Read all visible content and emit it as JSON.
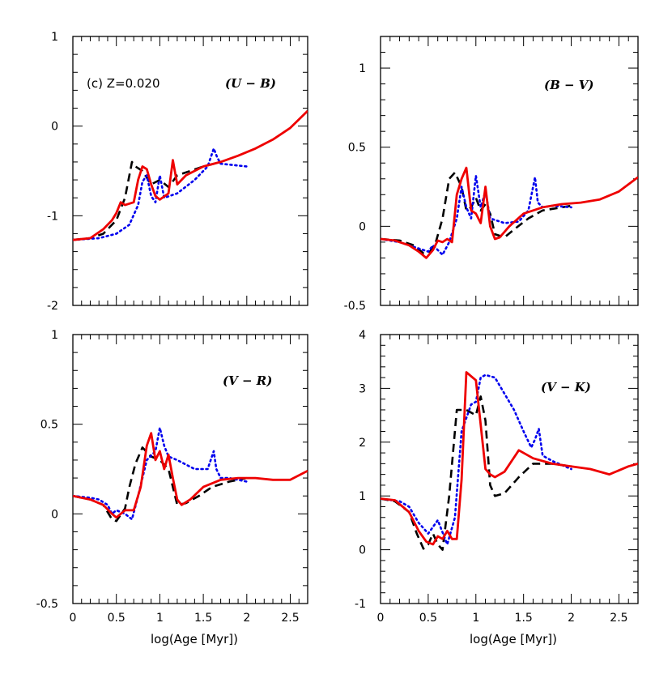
{
  "chart_data": [
    {
      "type": "line",
      "id": "ub",
      "title": "(U − B)",
      "annotation": "(c) Z=0.020",
      "xlabel": "",
      "ylabel": "",
      "xlim": [
        0,
        2.7
      ],
      "ylim": [
        -2,
        1
      ],
      "yticks": [
        -2,
        -1,
        0,
        1
      ],
      "ytick_labels": [
        "-2",
        "-1",
        "0",
        "1"
      ],
      "xticks": [
        0,
        0.5,
        1,
        1.5,
        2,
        2.5
      ],
      "xtick_labels": [],
      "series": [
        {
          "name": "black-dashed",
          "color": "#000000",
          "dash": "10,6",
          "width": 2.6,
          "x": [
            0,
            0.2,
            0.35,
            0.5,
            0.6,
            0.68,
            0.72,
            0.8,
            0.9,
            1.0,
            1.1,
            1.2,
            1.35,
            1.5,
            1.7
          ],
          "y": [
            -1.27,
            -1.25,
            -1.2,
            -1.05,
            -0.8,
            -0.4,
            -0.45,
            -0.5,
            -0.65,
            -0.6,
            -0.68,
            -0.55,
            -0.5,
            -0.45,
            -0.4
          ]
        },
        {
          "name": "blue-dotted",
          "color": "#0000ee",
          "dash": "2,4",
          "width": 2.6,
          "x": [
            0,
            0.3,
            0.5,
            0.65,
            0.75,
            0.8,
            0.85,
            0.9,
            0.95,
            1.0,
            1.05,
            1.2,
            1.4,
            1.55,
            1.62,
            1.66,
            1.7,
            2.0
          ],
          "y": [
            -1.27,
            -1.25,
            -1.2,
            -1.1,
            -0.88,
            -0.62,
            -0.55,
            -0.78,
            -0.85,
            -0.55,
            -0.8,
            -0.75,
            -0.6,
            -0.45,
            -0.25,
            -0.35,
            -0.42,
            -0.45
          ]
        },
        {
          "name": "red-solid",
          "color": "#ee0000",
          "dash": "",
          "width": 2.8,
          "x": [
            0,
            0.2,
            0.35,
            0.45,
            0.5,
            0.55,
            0.6,
            0.7,
            0.75,
            0.8,
            0.85,
            0.9,
            0.95,
            1.0,
            1.1,
            1.15,
            1.2,
            1.3,
            1.5,
            1.7,
            1.9,
            2.1,
            2.3,
            2.5,
            2.7
          ],
          "y": [
            -1.27,
            -1.25,
            -1.15,
            -1.05,
            -0.97,
            -0.85,
            -0.88,
            -0.85,
            -0.6,
            -0.45,
            -0.48,
            -0.65,
            -0.78,
            -0.82,
            -0.75,
            -0.38,
            -0.65,
            -0.55,
            -0.45,
            -0.4,
            -0.33,
            -0.25,
            -0.15,
            -0.02,
            0.17
          ]
        }
      ]
    },
    {
      "type": "line",
      "id": "bv",
      "title": "(B − V)",
      "xlabel": "",
      "ylabel": "",
      "xlim": [
        0,
        2.7
      ],
      "ylim": [
        -0.5,
        1.2
      ],
      "yticks": [
        -0.5,
        0,
        0.5,
        1
      ],
      "ytick_labels": [
        "-0.5",
        "0",
        "0.5",
        "1"
      ],
      "xticks": [
        0,
        0.5,
        1,
        1.5,
        2,
        2.5
      ],
      "xtick_labels": [],
      "series": [
        {
          "name": "black-dashed",
          "color": "#000000",
          "dash": "10,6",
          "width": 2.6,
          "x": [
            0,
            0.2,
            0.35,
            0.45,
            0.52,
            0.58,
            0.65,
            0.72,
            0.78,
            0.85,
            0.9,
            0.95,
            1.0,
            1.05,
            1.1,
            1.15,
            1.2,
            1.3,
            1.4,
            1.55,
            1.7,
            2.0
          ],
          "y": [
            -0.08,
            -0.09,
            -0.12,
            -0.17,
            -0.16,
            -0.1,
            0.05,
            0.3,
            0.34,
            0.25,
            0.1,
            0.12,
            0.18,
            0.1,
            0.14,
            0.08,
            -0.05,
            -0.07,
            -0.02,
            0.05,
            0.1,
            0.13
          ]
        },
        {
          "name": "blue-dotted",
          "color": "#0000ee",
          "dash": "2,4",
          "width": 2.6,
          "x": [
            0,
            0.2,
            0.4,
            0.5,
            0.55,
            0.65,
            0.72,
            0.8,
            0.85,
            0.9,
            0.95,
            1.0,
            1.05,
            1.1,
            1.15,
            1.3,
            1.45,
            1.55,
            1.62,
            1.65,
            1.7,
            1.8,
            2.0
          ],
          "y": [
            -0.08,
            -0.1,
            -0.14,
            -0.16,
            -0.12,
            -0.18,
            -0.1,
            0.05,
            0.25,
            0.12,
            0.05,
            0.32,
            0.12,
            0.22,
            0.05,
            0.02,
            0.03,
            0.1,
            0.31,
            0.15,
            0.12,
            0.13,
            0.12
          ]
        },
        {
          "name": "red-solid",
          "color": "#ee0000",
          "dash": "",
          "width": 2.8,
          "x": [
            0,
            0.15,
            0.3,
            0.4,
            0.48,
            0.55,
            0.6,
            0.65,
            0.7,
            0.75,
            0.8,
            0.85,
            0.9,
            0.95,
            1.0,
            1.05,
            1.1,
            1.15,
            1.2,
            1.25,
            1.35,
            1.5,
            1.7,
            1.9,
            2.1,
            2.3,
            2.5,
            2.7
          ],
          "y": [
            -0.08,
            -0.09,
            -0.12,
            -0.16,
            -0.2,
            -0.15,
            -0.09,
            -0.1,
            -0.08,
            -0.1,
            0.2,
            0.3,
            0.37,
            0.1,
            0.08,
            0.02,
            0.25,
            0.0,
            -0.08,
            -0.07,
            0.0,
            0.08,
            0.12,
            0.14,
            0.15,
            0.17,
            0.22,
            0.31
          ]
        }
      ]
    },
    {
      "type": "line",
      "id": "vr",
      "title": "(V − R)",
      "xlabel": "log(Age [Myr])",
      "ylabel": "",
      "xlim": [
        0,
        2.7
      ],
      "ylim": [
        -0.5,
        1
      ],
      "yticks": [
        -0.5,
        0,
        0.5,
        1
      ],
      "ytick_labels": [
        "-0.5",
        "0",
        "0.5",
        "1"
      ],
      "xticks": [
        0,
        0.5,
        1,
        1.5,
        2,
        2.5
      ],
      "xtick_labels": [
        "0",
        "0.5",
        "1",
        "1.5",
        "2",
        "2.5"
      ],
      "series": [
        {
          "name": "black-dashed",
          "color": "#000000",
          "dash": "10,6",
          "width": 2.6,
          "x": [
            0,
            0.2,
            0.35,
            0.45,
            0.5,
            0.6,
            0.65,
            0.72,
            0.8,
            0.9,
            1.0,
            1.1,
            1.2,
            1.3,
            1.45,
            1.6,
            1.8,
            2.0
          ],
          "y": [
            0.1,
            0.08,
            0.05,
            -0.03,
            -0.04,
            0.03,
            0.15,
            0.28,
            0.37,
            0.32,
            0.3,
            0.25,
            0.05,
            0.06,
            0.1,
            0.15,
            0.18,
            0.2
          ]
        },
        {
          "name": "blue-dotted",
          "color": "#0000ee",
          "dash": "2,4",
          "width": 2.6,
          "x": [
            0,
            0.2,
            0.3,
            0.4,
            0.45,
            0.5,
            0.6,
            0.68,
            0.75,
            0.8,
            0.85,
            0.95,
            1.0,
            1.05,
            1.1,
            1.2,
            1.4,
            1.55,
            1.62,
            1.65,
            1.7,
            1.8,
            2.0
          ],
          "y": [
            0.1,
            0.09,
            0.08,
            0.05,
            0.0,
            0.02,
            0.0,
            -0.03,
            0.1,
            0.2,
            0.3,
            0.35,
            0.48,
            0.38,
            0.32,
            0.3,
            0.25,
            0.25,
            0.35,
            0.25,
            0.2,
            0.2,
            0.18
          ]
        },
        {
          "name": "red-solid",
          "color": "#ee0000",
          "dash": "",
          "width": 2.8,
          "x": [
            0,
            0.2,
            0.35,
            0.45,
            0.5,
            0.6,
            0.7,
            0.78,
            0.85,
            0.9,
            0.95,
            1.0,
            1.05,
            1.1,
            1.15,
            1.2,
            1.25,
            1.35,
            1.5,
            1.7,
            1.9,
            2.1,
            2.3,
            2.5,
            2.7
          ],
          "y": [
            0.1,
            0.08,
            0.05,
            0.0,
            -0.02,
            0.02,
            0.02,
            0.15,
            0.38,
            0.45,
            0.3,
            0.35,
            0.25,
            0.33,
            0.2,
            0.08,
            0.05,
            0.08,
            0.15,
            0.19,
            0.2,
            0.2,
            0.19,
            0.19,
            0.24
          ]
        }
      ]
    },
    {
      "type": "line",
      "id": "vk",
      "title": "(V − K)",
      "xlabel": "log(Age [Myr])",
      "ylabel": "",
      "xlim": [
        0,
        2.7
      ],
      "ylim": [
        -1,
        4
      ],
      "yticks": [
        -1,
        0,
        1,
        2,
        3,
        4
      ],
      "ytick_labels": [
        "-1",
        "0",
        "1",
        "2",
        "3",
        "4"
      ],
      "xticks": [
        0,
        0.5,
        1,
        1.5,
        2,
        2.5
      ],
      "xtick_labels": [
        "0",
        "0.5",
        "1",
        "1.5",
        "2",
        "2.5"
      ],
      "series": [
        {
          "name": "black-dashed",
          "color": "#000000",
          "dash": "10,6",
          "width": 2.6,
          "x": [
            0,
            0.15,
            0.3,
            0.38,
            0.45,
            0.5,
            0.55,
            0.6,
            0.65,
            0.72,
            0.8,
            0.9,
            1.0,
            1.05,
            1.1,
            1.15,
            1.2,
            1.3,
            1.45,
            1.6,
            1.8,
            2.0
          ],
          "y": [
            0.95,
            0.9,
            0.7,
            0.3,
            0.02,
            0.1,
            0.3,
            0.1,
            0.0,
            1.0,
            2.6,
            2.6,
            2.5,
            2.85,
            2.4,
            1.2,
            1.0,
            1.05,
            1.35,
            1.6,
            1.6,
            1.55
          ]
        },
        {
          "name": "blue-dotted",
          "color": "#0000ee",
          "dash": "2,4",
          "width": 2.6,
          "x": [
            0,
            0.2,
            0.3,
            0.4,
            0.5,
            0.6,
            0.7,
            0.78,
            0.85,
            0.95,
            1.0,
            1.05,
            1.1,
            1.2,
            1.3,
            1.4,
            1.5,
            1.58,
            1.62,
            1.66,
            1.7,
            1.8,
            2.0
          ],
          "y": [
            0.95,
            0.9,
            0.8,
            0.5,
            0.3,
            0.55,
            0.1,
            0.6,
            2.2,
            2.7,
            2.75,
            3.2,
            3.25,
            3.2,
            2.9,
            2.6,
            2.2,
            1.9,
            2.05,
            2.25,
            1.75,
            1.65,
            1.5
          ]
        },
        {
          "name": "red-solid",
          "color": "#ee0000",
          "dash": "",
          "width": 2.8,
          "x": [
            0,
            0.15,
            0.3,
            0.4,
            0.48,
            0.55,
            0.6,
            0.65,
            0.7,
            0.75,
            0.8,
            0.85,
            0.9,
            1.0,
            1.1,
            1.15,
            1.2,
            1.3,
            1.45,
            1.6,
            1.8,
            2.0,
            2.2,
            2.4,
            2.6,
            2.7
          ],
          "y": [
            0.95,
            0.92,
            0.7,
            0.35,
            0.15,
            0.1,
            0.25,
            0.2,
            0.35,
            0.2,
            0.2,
            1.3,
            3.3,
            3.15,
            1.5,
            1.4,
            1.35,
            1.45,
            1.85,
            1.7,
            1.6,
            1.55,
            1.5,
            1.4,
            1.55,
            1.6
          ]
        }
      ]
    }
  ]
}
